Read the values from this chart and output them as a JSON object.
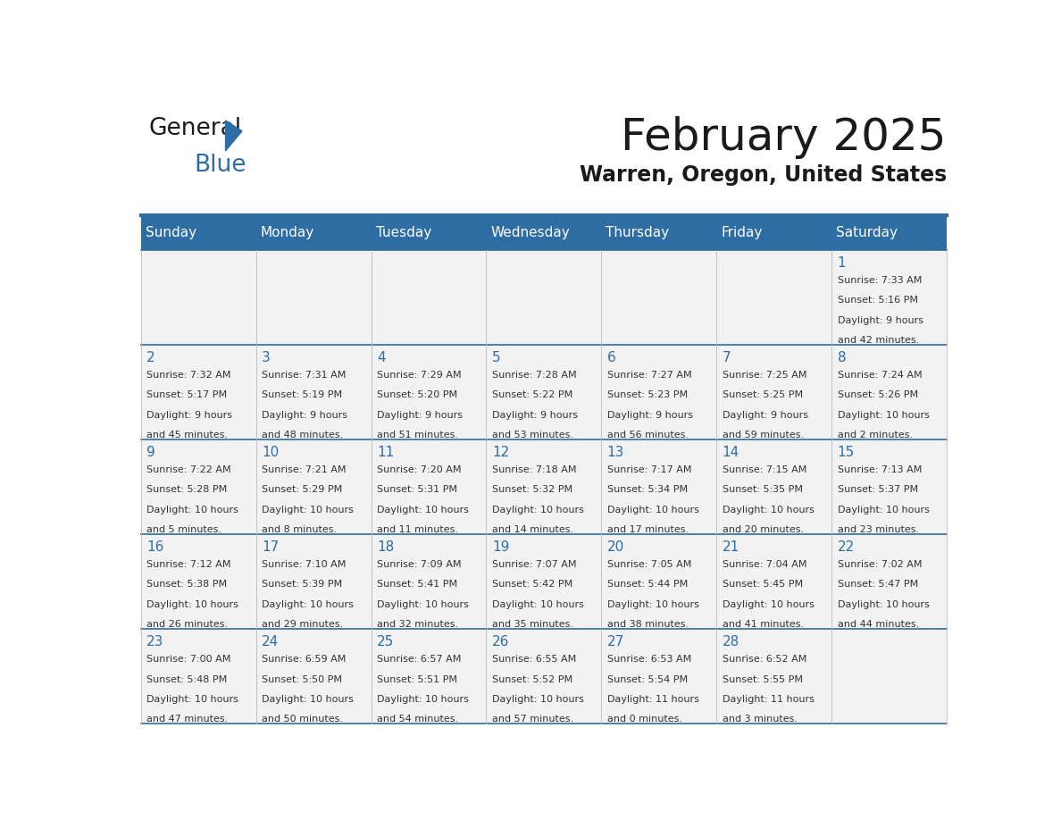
{
  "title": "February 2025",
  "subtitle": "Warren, Oregon, United States",
  "header_bg": "#2E6DA4",
  "header_text_color": "#FFFFFF",
  "cell_bg_light": "#F2F2F2",
  "border_color": "#2E6DA4",
  "day_headers": [
    "Sunday",
    "Monday",
    "Tuesday",
    "Wednesday",
    "Thursday",
    "Friday",
    "Saturday"
  ],
  "title_color": "#1a1a1a",
  "subtitle_color": "#1a1a1a",
  "day_num_color": "#2E6DA4",
  "cell_text_color": "#333333",
  "days": [
    {
      "day": 1,
      "col": 6,
      "row": 0,
      "sunrise": "7:33 AM",
      "sunset": "5:16 PM",
      "daylight": "9 hours and 42 minutes."
    },
    {
      "day": 2,
      "col": 0,
      "row": 1,
      "sunrise": "7:32 AM",
      "sunset": "5:17 PM",
      "daylight": "9 hours and 45 minutes."
    },
    {
      "day": 3,
      "col": 1,
      "row": 1,
      "sunrise": "7:31 AM",
      "sunset": "5:19 PM",
      "daylight": "9 hours and 48 minutes."
    },
    {
      "day": 4,
      "col": 2,
      "row": 1,
      "sunrise": "7:29 AM",
      "sunset": "5:20 PM",
      "daylight": "9 hours and 51 minutes."
    },
    {
      "day": 5,
      "col": 3,
      "row": 1,
      "sunrise": "7:28 AM",
      "sunset": "5:22 PM",
      "daylight": "9 hours and 53 minutes."
    },
    {
      "day": 6,
      "col": 4,
      "row": 1,
      "sunrise": "7:27 AM",
      "sunset": "5:23 PM",
      "daylight": "9 hours and 56 minutes."
    },
    {
      "day": 7,
      "col": 5,
      "row": 1,
      "sunrise": "7:25 AM",
      "sunset": "5:25 PM",
      "daylight": "9 hours and 59 minutes."
    },
    {
      "day": 8,
      "col": 6,
      "row": 1,
      "sunrise": "7:24 AM",
      "sunset": "5:26 PM",
      "daylight": "10 hours and 2 minutes."
    },
    {
      "day": 9,
      "col": 0,
      "row": 2,
      "sunrise": "7:22 AM",
      "sunset": "5:28 PM",
      "daylight": "10 hours and 5 minutes."
    },
    {
      "day": 10,
      "col": 1,
      "row": 2,
      "sunrise": "7:21 AM",
      "sunset": "5:29 PM",
      "daylight": "10 hours and 8 minutes."
    },
    {
      "day": 11,
      "col": 2,
      "row": 2,
      "sunrise": "7:20 AM",
      "sunset": "5:31 PM",
      "daylight": "10 hours and 11 minutes."
    },
    {
      "day": 12,
      "col": 3,
      "row": 2,
      "sunrise": "7:18 AM",
      "sunset": "5:32 PM",
      "daylight": "10 hours and 14 minutes."
    },
    {
      "day": 13,
      "col": 4,
      "row": 2,
      "sunrise": "7:17 AM",
      "sunset": "5:34 PM",
      "daylight": "10 hours and 17 minutes."
    },
    {
      "day": 14,
      "col": 5,
      "row": 2,
      "sunrise": "7:15 AM",
      "sunset": "5:35 PM",
      "daylight": "10 hours and 20 minutes."
    },
    {
      "day": 15,
      "col": 6,
      "row": 2,
      "sunrise": "7:13 AM",
      "sunset": "5:37 PM",
      "daylight": "10 hours and 23 minutes."
    },
    {
      "day": 16,
      "col": 0,
      "row": 3,
      "sunrise": "7:12 AM",
      "sunset": "5:38 PM",
      "daylight": "10 hours and 26 minutes."
    },
    {
      "day": 17,
      "col": 1,
      "row": 3,
      "sunrise": "7:10 AM",
      "sunset": "5:39 PM",
      "daylight": "10 hours and 29 minutes."
    },
    {
      "day": 18,
      "col": 2,
      "row": 3,
      "sunrise": "7:09 AM",
      "sunset": "5:41 PM",
      "daylight": "10 hours and 32 minutes."
    },
    {
      "day": 19,
      "col": 3,
      "row": 3,
      "sunrise": "7:07 AM",
      "sunset": "5:42 PM",
      "daylight": "10 hours and 35 minutes."
    },
    {
      "day": 20,
      "col": 4,
      "row": 3,
      "sunrise": "7:05 AM",
      "sunset": "5:44 PM",
      "daylight": "10 hours and 38 minutes."
    },
    {
      "day": 21,
      "col": 5,
      "row": 3,
      "sunrise": "7:04 AM",
      "sunset": "5:45 PM",
      "daylight": "10 hours and 41 minutes."
    },
    {
      "day": 22,
      "col": 6,
      "row": 3,
      "sunrise": "7:02 AM",
      "sunset": "5:47 PM",
      "daylight": "10 hours and 44 minutes."
    },
    {
      "day": 23,
      "col": 0,
      "row": 4,
      "sunrise": "7:00 AM",
      "sunset": "5:48 PM",
      "daylight": "10 hours and 47 minutes."
    },
    {
      "day": 24,
      "col": 1,
      "row": 4,
      "sunrise": "6:59 AM",
      "sunset": "5:50 PM",
      "daylight": "10 hours and 50 minutes."
    },
    {
      "day": 25,
      "col": 2,
      "row": 4,
      "sunrise": "6:57 AM",
      "sunset": "5:51 PM",
      "daylight": "10 hours and 54 minutes."
    },
    {
      "day": 26,
      "col": 3,
      "row": 4,
      "sunrise": "6:55 AM",
      "sunset": "5:52 PM",
      "daylight": "10 hours and 57 minutes."
    },
    {
      "day": 27,
      "col": 4,
      "row": 4,
      "sunrise": "6:53 AM",
      "sunset": "5:54 PM",
      "daylight": "11 hours and 0 minutes."
    },
    {
      "day": 28,
      "col": 5,
      "row": 4,
      "sunrise": "6:52 AM",
      "sunset": "5:55 PM",
      "daylight": "11 hours and 3 minutes."
    }
  ],
  "num_rows": 5,
  "num_cols": 7,
  "logo_text1": "General",
  "logo_text2": "Blue",
  "logo_text1_color": "#1a1a1a",
  "logo_text2_color": "#2E6DA4",
  "logo_triangle_color": "#2E6DA4"
}
